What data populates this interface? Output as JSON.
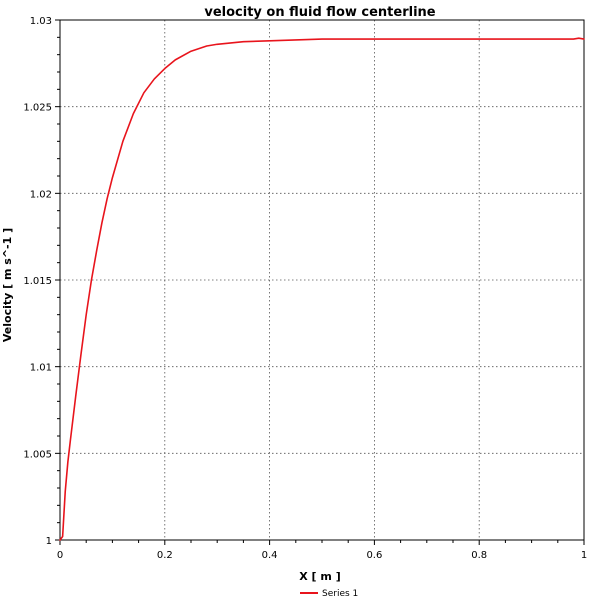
{
  "chart_data": {
    "type": "line",
    "title": "velocity on fluid flow centerline",
    "xlabel": "X [ m ]",
    "ylabel": "Velocity [ m s^-1 ]",
    "xlim": [
      0,
      1
    ],
    "ylim": [
      1.0,
      1.03
    ],
    "x_ticks": [
      "0",
      "0.2",
      "0.4",
      "0.6",
      "0.8",
      "1"
    ],
    "x_tick_values": [
      0,
      0.2,
      0.4,
      0.6,
      0.8,
      1.0
    ],
    "y_ticks": [
      "1",
      "1.005",
      "1.01",
      "1.015",
      "1.02",
      "1.025",
      "1.03"
    ],
    "y_tick_values": [
      1.0,
      1.005,
      1.01,
      1.015,
      1.02,
      1.025,
      1.03
    ],
    "grid": true,
    "legend_position": "bottom-center",
    "series": [
      {
        "name": "Series 1",
        "color": "#e8141c",
        "x": [
          0.0,
          0.005,
          0.01,
          0.015,
          0.02,
          0.03,
          0.04,
          0.05,
          0.06,
          0.07,
          0.08,
          0.09,
          0.1,
          0.12,
          0.14,
          0.16,
          0.18,
          0.2,
          0.22,
          0.25,
          0.28,
          0.3,
          0.35,
          0.4,
          0.45,
          0.5,
          0.6,
          0.7,
          0.8,
          0.9,
          0.98,
          0.99,
          1.0
        ],
        "y": [
          1.0,
          1.0002,
          1.0028,
          1.0045,
          1.0058,
          1.0083,
          1.0107,
          1.013,
          1.015,
          1.0167,
          1.0183,
          1.0197,
          1.0209,
          1.023,
          1.0246,
          1.0258,
          1.0266,
          1.0272,
          1.0277,
          1.0282,
          1.0285,
          1.0286,
          1.02875,
          1.0288,
          1.02885,
          1.0289,
          1.0289,
          1.0289,
          1.0289,
          1.0289,
          1.0289,
          1.02895,
          1.0289
        ]
      }
    ]
  }
}
